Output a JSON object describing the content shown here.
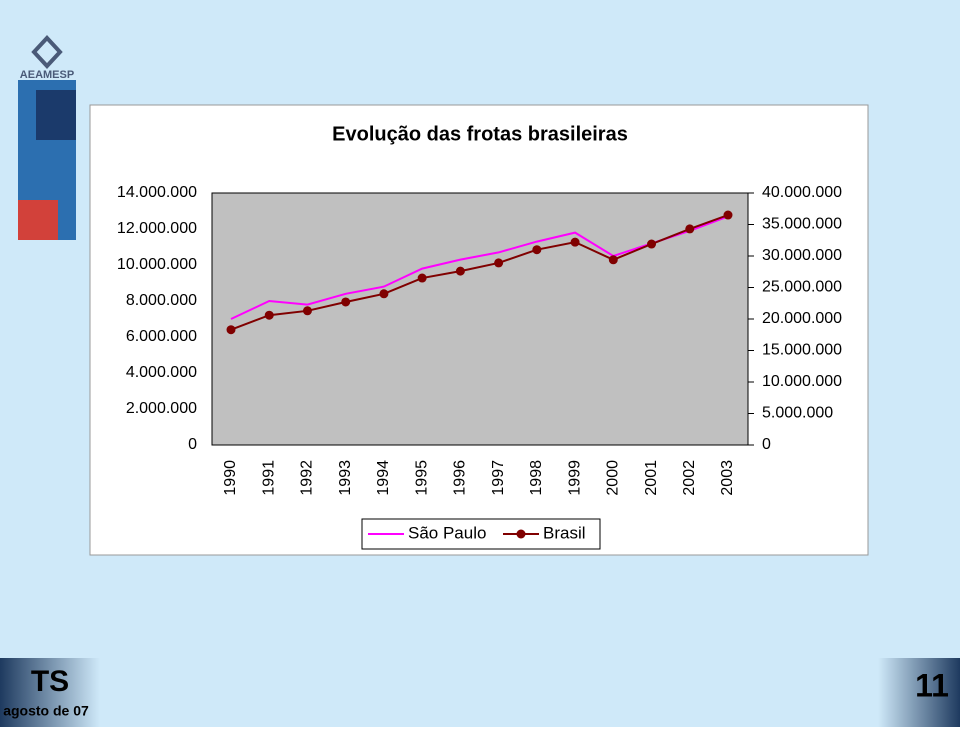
{
  "slide": {
    "logo_text": "AEAMESP",
    "footer_left": "TS",
    "footer_date": "agosto de 07",
    "page_number": "11"
  },
  "chart_data": {
    "type": "line",
    "title": "Evolução das frotas brasileiras",
    "categories": [
      "1990",
      "1991",
      "1992",
      "1993",
      "1994",
      "1995",
      "1996",
      "1997",
      "1998",
      "1999",
      "2000",
      "2001",
      "2002",
      "2003"
    ],
    "series": [
      {
        "name": "São Paulo",
        "color": "#ff00ff",
        "marker": false,
        "values": [
          7000000,
          8000000,
          7800000,
          8400000,
          8800000,
          9800000,
          10300000,
          10700000,
          11300000,
          11800000,
          10500000,
          11200000,
          11900000,
          12700000
        ]
      },
      {
        "name": "Brasil",
        "color": "#800000",
        "marker": true,
        "axis": "y2",
        "values": [
          18300000,
          20600000,
          21300000,
          22700000,
          24000000,
          26500000,
          27600000,
          28900000,
          31000000,
          32200000,
          29400000,
          31900000,
          34300000,
          36500000
        ]
      }
    ],
    "ylim": [
      0,
      14000000
    ],
    "yticks": [
      0,
      {
        "value": 2000000,
        "label": "2.000.000"
      },
      {
        "value": 4000000,
        "label": "4.000.000"
      },
      {
        "value": 6000000,
        "label": "6.000.000"
      },
      {
        "value": 8000000,
        "label": "8.000.000"
      },
      {
        "value": 10000000,
        "label": "10.000.000"
      },
      {
        "value": 12000000,
        "label": "12.000.000"
      },
      {
        "value": 14000000,
        "label": "14.000.000"
      }
    ],
    "y2lim": [
      0,
      40000000
    ],
    "y2ticks": [
      0,
      {
        "value": 5000000,
        "label": "5.000.000"
      },
      {
        "value": 10000000,
        "label": "10.000.000"
      },
      {
        "value": 15000000,
        "label": "15.000.000"
      },
      {
        "value": 20000000,
        "label": "20.000.000"
      },
      {
        "value": 25000000,
        "label": "25.000.000"
      },
      {
        "value": 30000000,
        "label": "30.000.000"
      },
      {
        "value": 35000000,
        "label": "35.000.000"
      },
      {
        "value": 40000000,
        "label": "40.000.000"
      }
    ],
    "legend": "bottom",
    "grid": false
  }
}
